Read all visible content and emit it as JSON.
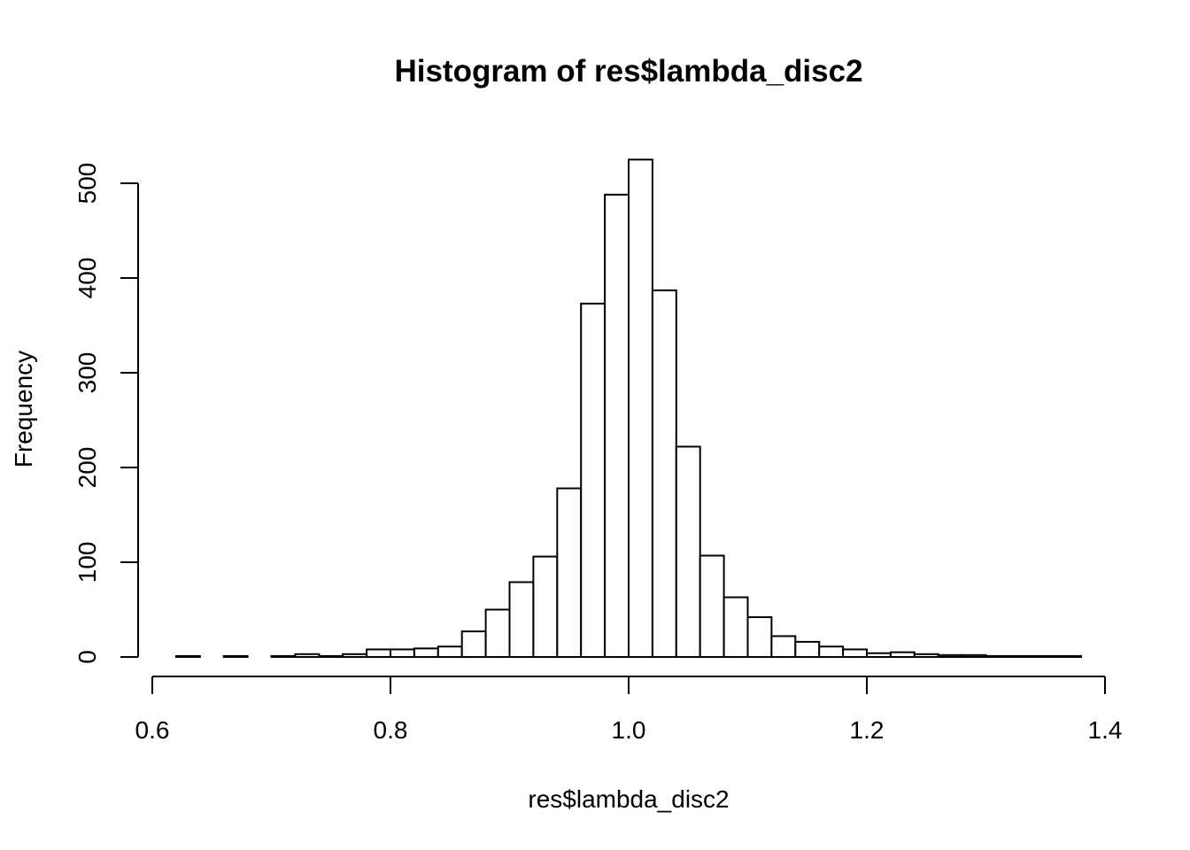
{
  "chart_data": {
    "type": "bar",
    "title": "Histogram of res$lambda_disc2",
    "xlabel": "res$lambda_disc2",
    "ylabel": "Frequency",
    "xlim": [
      0.6,
      1.4
    ],
    "ylim": [
      0,
      500
    ],
    "x_ticks": [
      "0.6",
      "0.8",
      "1.0",
      "1.2",
      "1.4"
    ],
    "y_ticks": [
      "0",
      "100",
      "200",
      "300",
      "400",
      "500"
    ],
    "bin_width": 0.02,
    "bin_edges_start": 0.62,
    "bar_color": "#ffffff",
    "edge_color": "#000000",
    "grid": false,
    "values": [
      1,
      0,
      1,
      0,
      1,
      3,
      1,
      3,
      8,
      8,
      9,
      11,
      27,
      50,
      79,
      106,
      178,
      373,
      488,
      525,
      387,
      222,
      107,
      63,
      42,
      22,
      16,
      11,
      8,
      4,
      5,
      3,
      2,
      2,
      1,
      1,
      1,
      1
    ]
  }
}
